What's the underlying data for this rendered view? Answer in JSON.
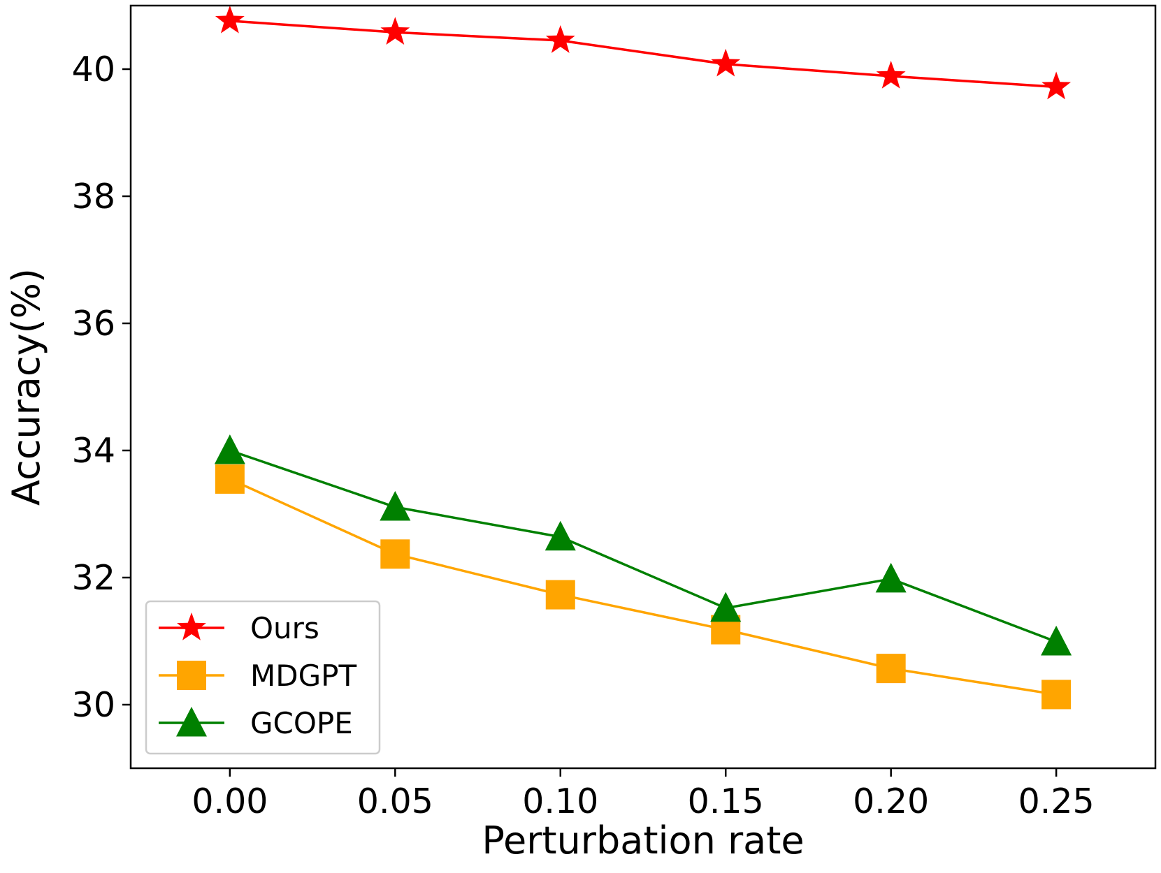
{
  "chart_data": {
    "type": "line",
    "title": "",
    "xlabel": "Perturbation rate",
    "ylabel": "Accuracy(%)",
    "x": [
      0.0,
      0.05,
      0.1,
      0.15,
      0.2,
      0.25
    ],
    "x_tick_labels": [
      "0.00",
      "0.05",
      "0.10",
      "0.15",
      "0.20",
      "0.25"
    ],
    "y_ticks": [
      30,
      32,
      34,
      36,
      38,
      40
    ],
    "y_tick_labels": [
      "30",
      "32",
      "34",
      "36",
      "38",
      "40"
    ],
    "xlim": [
      -0.03,
      0.28
    ],
    "ylim": [
      29.0,
      41.0
    ],
    "grid": false,
    "legend_position": "lower-left",
    "series": [
      {
        "name": "Ours",
        "color": "#ff0000",
        "marker": "star",
        "values": [
          40.76,
          40.58,
          40.45,
          40.08,
          39.89,
          39.72
        ]
      },
      {
        "name": "MDGPT",
        "color": "#ffa500",
        "marker": "square",
        "values": [
          33.55,
          32.37,
          31.73,
          31.18,
          30.57,
          30.16
        ]
      },
      {
        "name": "GCOPE",
        "color": "#008000",
        "marker": "triangle",
        "values": [
          34.0,
          33.11,
          32.64,
          31.52,
          31.98,
          30.99
        ]
      }
    ]
  }
}
